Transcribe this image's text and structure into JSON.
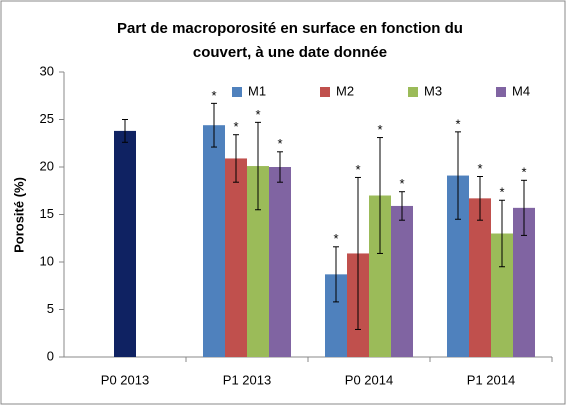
{
  "chart_data": {
    "type": "bar",
    "title": [
      "Part de macroporosité en surface en fonction du",
      "couvert, à une date donnée"
    ],
    "y_label": "Porosité (%)",
    "categories": [
      "P0 2013",
      "P1 2013",
      "P0 2014",
      "P1 2014"
    ],
    "ylim": [
      0,
      30
    ],
    "yticks": [
      0,
      5,
      10,
      15,
      20,
      25,
      30
    ],
    "grid": false,
    "legend": "top",
    "series": [
      {
        "color": "#0f2262",
        "values": [
          23.8,
          null,
          null,
          null
        ],
        "errors": [
          1.2,
          null,
          null,
          null
        ],
        "annotations": [
          null,
          null,
          null,
          null
        ],
        "offset": 0
      },
      {
        "name": "M1",
        "color": "#4f81bd",
        "values": [
          null,
          24.4,
          8.7,
          19.1
        ],
        "errors": [
          null,
          2.3,
          2.9,
          4.6
        ],
        "annotations": [
          null,
          "*",
          "*",
          "*"
        ],
        "offset": -1.5
      },
      {
        "name": "M2",
        "color": "#c0504d",
        "values": [
          null,
          20.9,
          10.9,
          16.7
        ],
        "errors": [
          null,
          2.5,
          8.0,
          2.3
        ],
        "annotations": [
          null,
          "*",
          "*",
          "*"
        ],
        "offset": -0.5
      },
      {
        "name": "M3",
        "color": "#9bbb59",
        "values": [
          null,
          20.1,
          17.0,
          13.0
        ],
        "errors": [
          null,
          4.6,
          6.1,
          3.5
        ],
        "annotations": [
          null,
          "*",
          "*",
          "*"
        ],
        "offset": 0.5
      },
      {
        "name": "M4",
        "color": "#8064a2",
        "values": [
          null,
          20.0,
          15.9,
          15.7
        ],
        "errors": [
          null,
          1.6,
          1.5,
          2.9
        ],
        "annotations": [
          null,
          "*",
          "*",
          "*"
        ],
        "offset": 1.5
      }
    ]
  }
}
